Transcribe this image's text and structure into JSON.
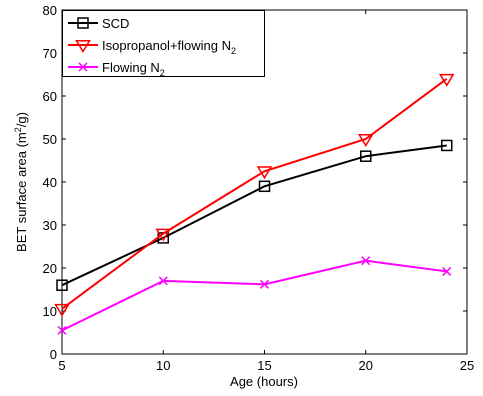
{
  "chart_data": {
    "type": "line",
    "xlabel": "Age (hours)",
    "ylabel": "BET surface area (m",
    "ylabel_sup": "2",
    "ylabel_tail": "/g)",
    "xlim": [
      5,
      25
    ],
    "ylim": [
      0,
      80
    ],
    "xticks": [
      5,
      10,
      15,
      20,
      25
    ],
    "yticks": [
      0,
      10,
      20,
      30,
      40,
      50,
      60,
      70,
      80
    ],
    "grid": false,
    "legend_position": "top-left",
    "series": [
      {
        "name": "SCD",
        "color": "#000000",
        "marker": "square",
        "x": [
          5,
          10,
          15,
          20,
          24
        ],
        "y": [
          16,
          27,
          39,
          46,
          48.5
        ]
      },
      {
        "name": "Isopropanol+flowing N",
        "name_sub": "2",
        "color": "#ff0000",
        "marker": "triangle-down",
        "x": [
          5,
          10,
          15,
          20,
          24
        ],
        "y": [
          10.5,
          28,
          42.5,
          50,
          64
        ]
      },
      {
        "name": "Flowing N",
        "name_sub": "2",
        "color": "#ff00ff",
        "marker": "x",
        "x": [
          5,
          10,
          15,
          20,
          24
        ],
        "y": [
          5.5,
          17,
          16.2,
          21.7,
          19.2
        ]
      }
    ]
  }
}
